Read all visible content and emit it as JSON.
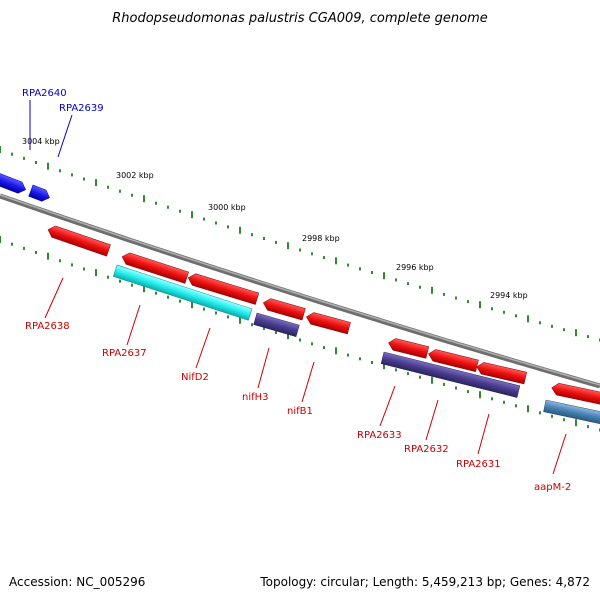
{
  "title": "Rhodopseudomonas palustris CGA009, complete genome",
  "accession": "Accession: NC_005296",
  "genome_info": "Topology: circular; Length: 5,459,213 bp; Genes: 4,872",
  "colors": {
    "backbone": "#8a8a8a",
    "tick": "#2e8b2e",
    "red_gene": "#ee1111",
    "blue_gene": "#1a1aee",
    "cyan_gene": "#22eeee",
    "indigo_gene": "#4a3d8f",
    "steel_gene": "#4682b4",
    "label_red": "#cc0000",
    "label_blue": "#0000cc"
  },
  "scale_labels": [
    "3004 kbp",
    "3002 kbp",
    "3000 kbp",
    "2998 kbp",
    "2996 kbp",
    "2994 kbp"
  ],
  "genes": [
    {
      "name": "RPA2640",
      "color": "blue_gene"
    },
    {
      "name": "RPA2639",
      "color": "blue_gene"
    },
    {
      "name": "RPA2638",
      "color": "red_gene"
    },
    {
      "name": "RPA2637",
      "color": "red_gene"
    },
    {
      "name": "NifD2",
      "color": "cyan_gene"
    },
    {
      "name": "nifH3",
      "color": "red_gene"
    },
    {
      "name": "nifB1",
      "color": "red_gene"
    },
    {
      "name": "RPA2633",
      "color": "red_gene"
    },
    {
      "name": "RPA2632",
      "color": "red_gene"
    },
    {
      "name": "RPA2631",
      "color": "red_gene"
    },
    {
      "name": "aapM-2",
      "color": "steel_gene"
    }
  ]
}
